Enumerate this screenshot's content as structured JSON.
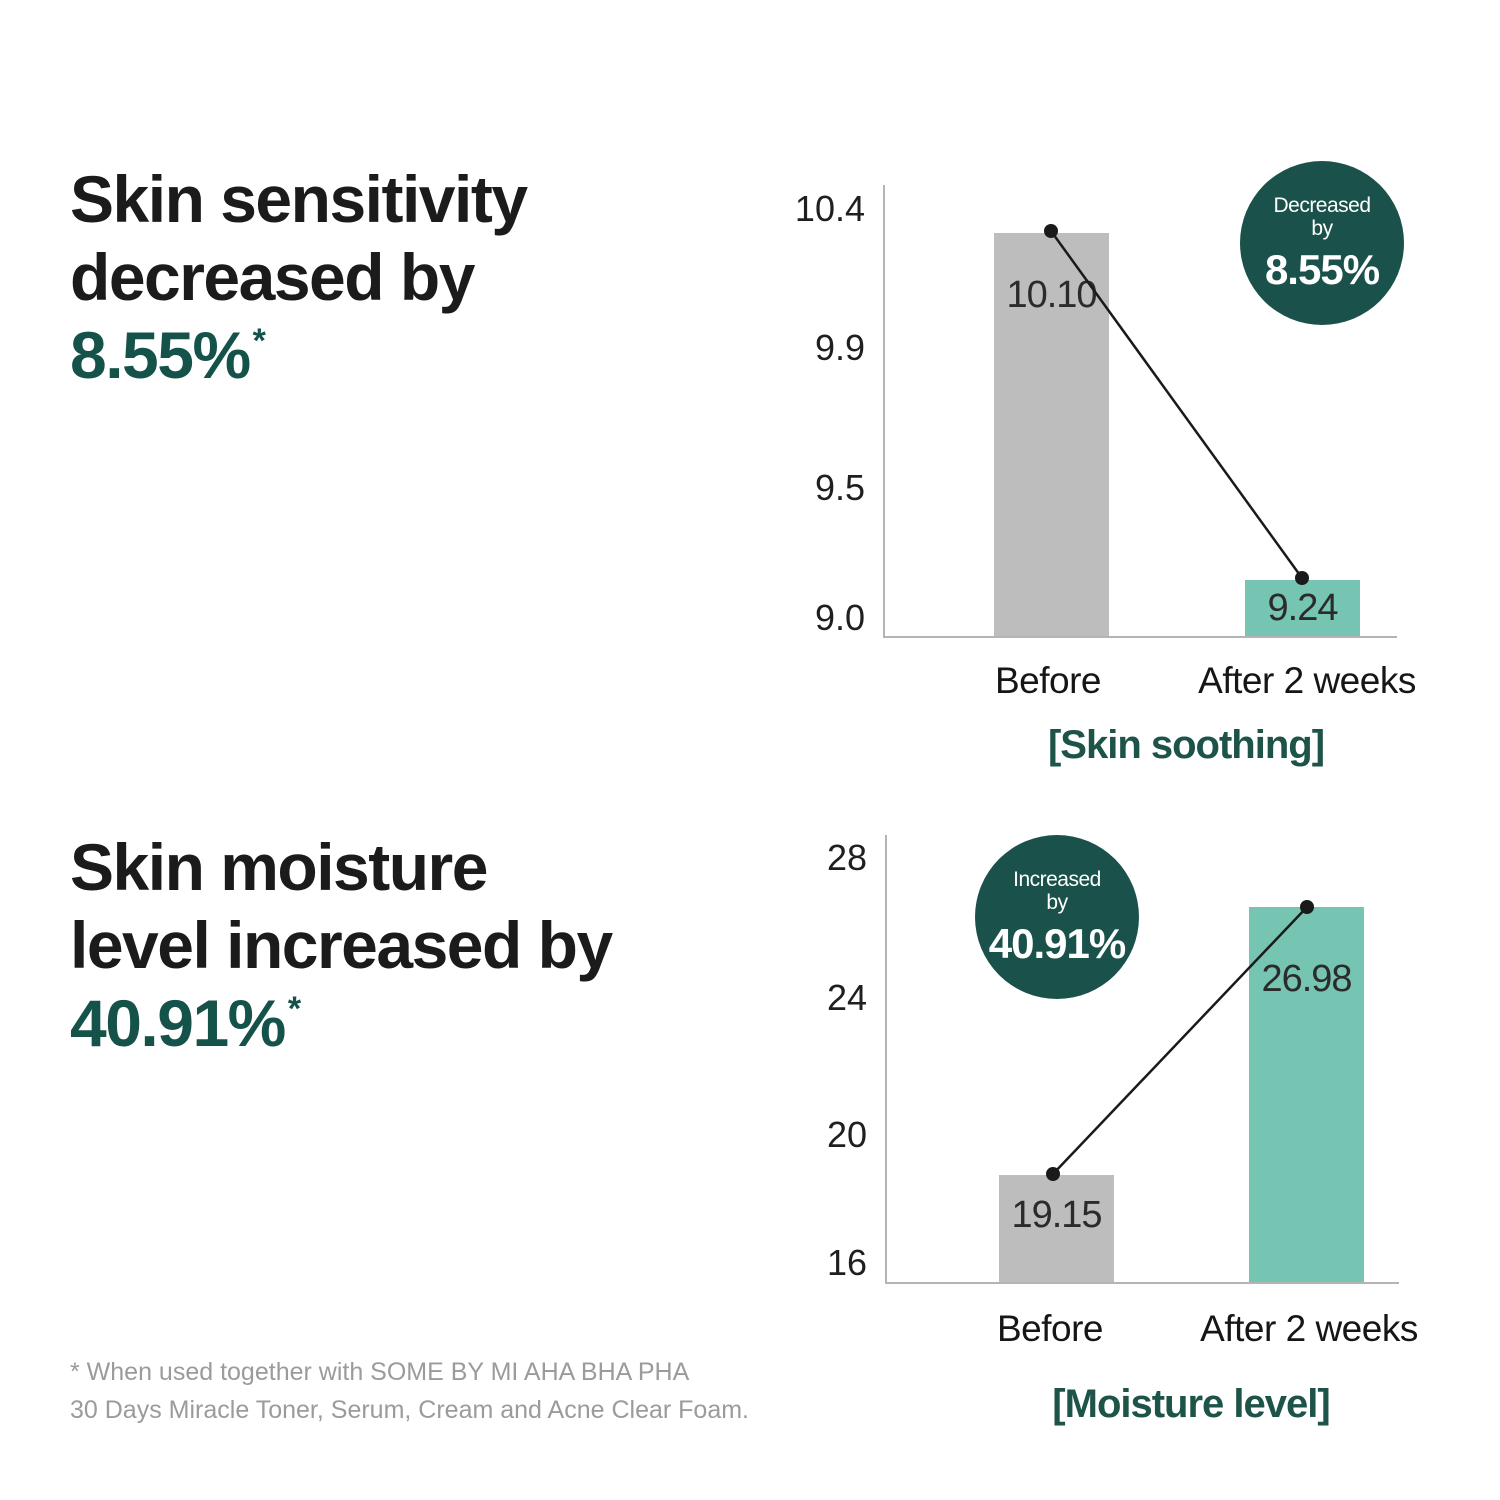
{
  "page": {
    "background": "#ffffff"
  },
  "sections": [
    {
      "heading_lines": [
        "Skin sensitivity",
        "decreased by"
      ],
      "heading_accent": "8.55%",
      "heading_asterisk": "*"
    },
    {
      "heading_lines": [
        "Skin moisture",
        "level increased by"
      ],
      "heading_accent": "40.91%",
      "heading_asterisk": "*"
    }
  ],
  "chart_data": [
    {
      "type": "bar",
      "title": "[Skin soothing]",
      "categories": [
        "Before",
        "After 2 weeks"
      ],
      "values": [
        10.1,
        9.24
      ],
      "value_labels": [
        "10.10",
        "9.24"
      ],
      "yticks": [
        "10.4",
        "9.9",
        "9.5",
        "9.0"
      ],
      "ylim": [
        9.0,
        10.4
      ],
      "grid": "off",
      "bar_colors": [
        "#bdbdbd",
        "#76c5b2"
      ],
      "connector_line": true,
      "badge": {
        "line1": "Decreased",
        "line2": "by",
        "value": "8.55%",
        "bg": "#1a524b",
        "position": "top-right"
      },
      "layout": {
        "bar_height_pct": [
          89.3,
          12.4
        ]
      }
    },
    {
      "type": "bar",
      "title": "[Moisture level]",
      "categories": [
        "Before",
        "After 2 weeks"
      ],
      "values": [
        19.15,
        26.98
      ],
      "value_labels": [
        "19.15",
        "26.98"
      ],
      "yticks": [
        "28",
        "24",
        "20",
        "16"
      ],
      "ylim": [
        16,
        28
      ],
      "grid": "off",
      "bar_colors": [
        "#bdbdbd",
        "#76c5b2"
      ],
      "connector_line": true,
      "badge": {
        "line1": "Increased",
        "line2": "by",
        "value": "40.91%",
        "bg": "#1a524b",
        "position": "top-left"
      },
      "layout": {
        "bar_height_pct": [
          23.9,
          84.0
        ]
      }
    }
  ],
  "footnote": {
    "line1": "* When used together with SOME BY MI AHA BHA PHA",
    "line2": "30 Days Miracle Toner, Serum, Cream and Acne Clear Foam."
  },
  "colors": {
    "accent_text": "#14524a",
    "caption_text": "#1d5348",
    "badge_background": "#1a524b",
    "bar_before": "#bdbdbd",
    "bar_after": "#76c5b2",
    "axis": "#b4b4b4",
    "footnote_text": "#9b9b9b"
  }
}
